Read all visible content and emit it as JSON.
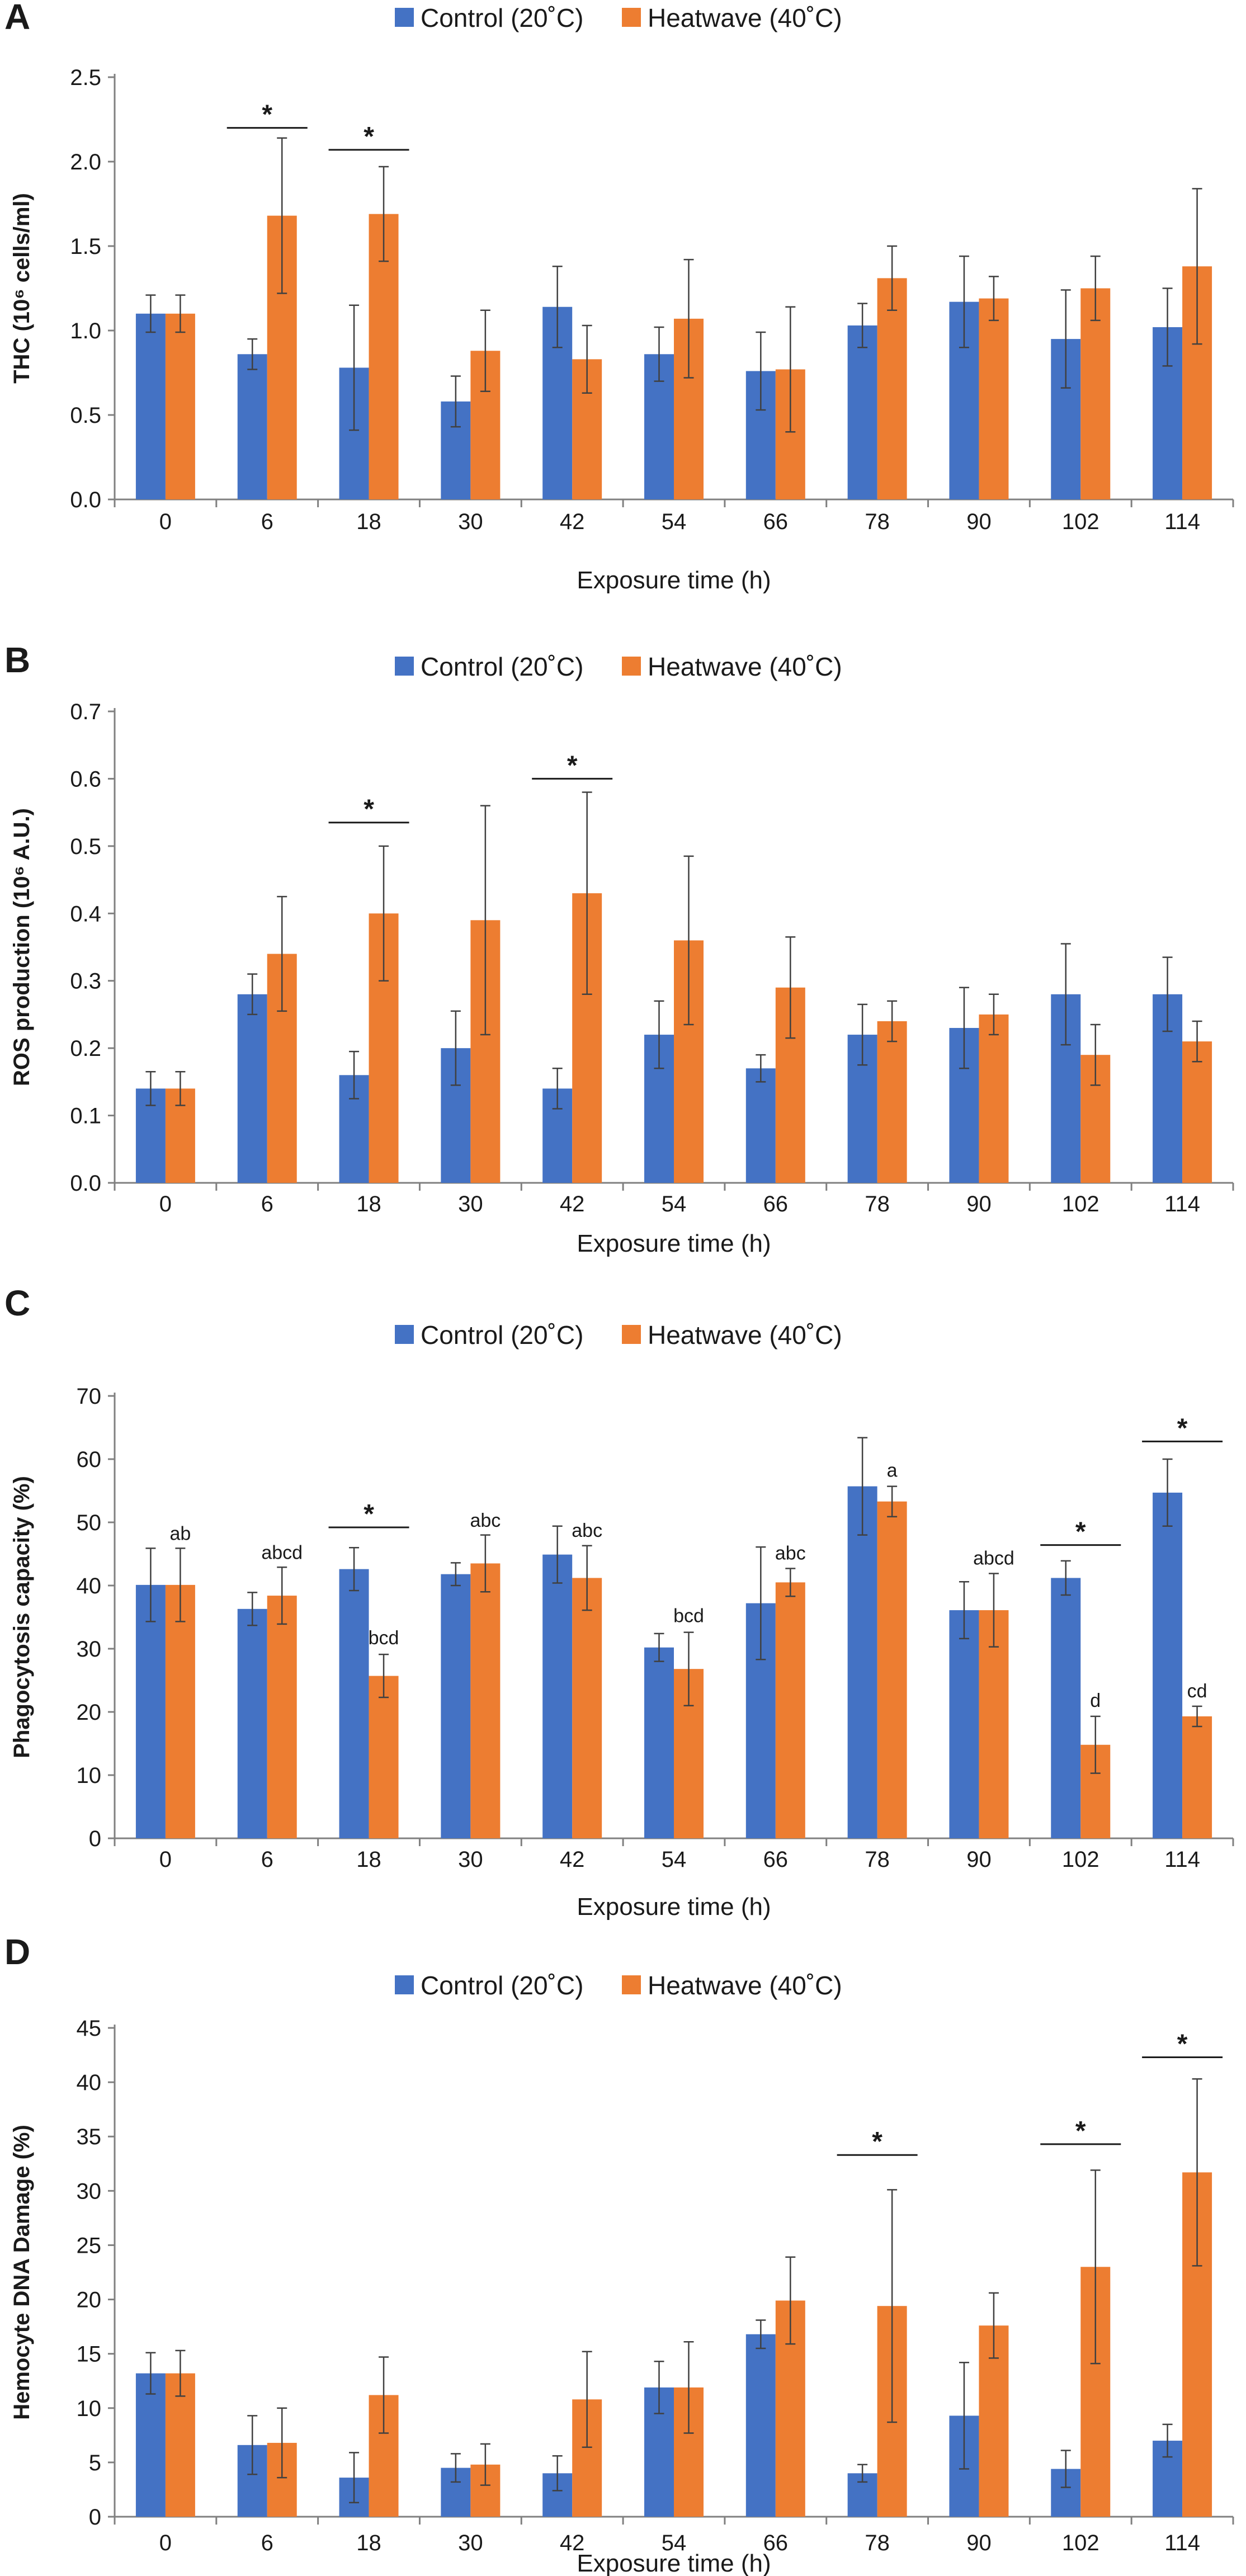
{
  "colors": {
    "control": "#4472C4",
    "heatwave": "#ED7D31",
    "axis": "#808080",
    "text": "#1a1a1a"
  },
  "chart_data": [
    {
      "panel": "A",
      "type": "bar",
      "legend": [
        "Control (20˚C)",
        "Heatwave (40˚C)"
      ],
      "xlabel": "Exposure time (h)",
      "ylabel": "THC (10⁶ cells/ml)",
      "categories": [
        "0",
        "6",
        "18",
        "30",
        "42",
        "54",
        "66",
        "78",
        "90",
        "102",
        "114"
      ],
      "ylim": [
        0,
        2.5
      ],
      "yticks": [
        0,
        0.5,
        1.0,
        1.5,
        2.0,
        2.5
      ],
      "ytick_labels": [
        "0.0",
        "0.5",
        "1.0",
        "1.5",
        "2.0",
        "2.5"
      ],
      "series": [
        {
          "name": "Control (20˚C)",
          "values": [
            1.1,
            0.86,
            0.78,
            0.58,
            1.14,
            0.86,
            0.76,
            1.03,
            1.17,
            0.95,
            1.02
          ],
          "errors": [
            0.11,
            0.09,
            0.37,
            0.15,
            0.24,
            0.16,
            0.23,
            0.13,
            0.27,
            0.29,
            0.23
          ]
        },
        {
          "name": "Heatwave (40˚C)",
          "values": [
            1.1,
            1.68,
            1.69,
            0.88,
            0.83,
            1.07,
            0.77,
            1.31,
            1.19,
            1.25,
            1.38
          ],
          "errors": [
            0.11,
            0.46,
            0.28,
            0.24,
            0.2,
            0.35,
            0.37,
            0.19,
            0.13,
            0.19,
            0.46
          ]
        }
      ],
      "significance": [
        {
          "category_index": 1,
          "label": "*",
          "y": 2.2
        },
        {
          "category_index": 2,
          "label": "*",
          "y": 2.07
        }
      ],
      "letters": []
    },
    {
      "panel": "B",
      "type": "bar",
      "legend": [
        "Control (20˚C)",
        "Heatwave (40˚C)"
      ],
      "xlabel": "Exposure time (h)",
      "ylabel": "ROS production (10⁶ A.U.)",
      "categories": [
        "0",
        "6",
        "18",
        "30",
        "42",
        "54",
        "66",
        "78",
        "90",
        "102",
        "114"
      ],
      "ylim": [
        0,
        0.7
      ],
      "yticks": [
        0,
        0.1,
        0.2,
        0.3,
        0.4,
        0.5,
        0.6,
        0.7
      ],
      "ytick_labels": [
        "0.0",
        "0.1",
        "0.2",
        "0.3",
        "0.4",
        "0.5",
        "0.6",
        "0.7"
      ],
      "series": [
        {
          "name": "Control (20˚C)",
          "values": [
            0.14,
            0.28,
            0.16,
            0.2,
            0.14,
            0.22,
            0.17,
            0.22,
            0.23,
            0.28,
            0.28
          ],
          "errors": [
            0.025,
            0.03,
            0.035,
            0.055,
            0.03,
            0.05,
            0.02,
            0.045,
            0.06,
            0.075,
            0.055
          ]
        },
        {
          "name": "Heatwave (40˚C)",
          "values": [
            0.14,
            0.34,
            0.4,
            0.39,
            0.43,
            0.36,
            0.29,
            0.24,
            0.25,
            0.19,
            0.21
          ],
          "errors": [
            0.025,
            0.085,
            0.1,
            0.17,
            0.15,
            0.125,
            0.075,
            0.03,
            0.03,
            0.045,
            0.03
          ]
        }
      ],
      "significance": [
        {
          "category_index": 2,
          "label": "*",
          "y": 0.535
        },
        {
          "category_index": 4,
          "label": "*",
          "y": 0.6
        }
      ],
      "letters": []
    },
    {
      "panel": "C",
      "type": "bar",
      "legend": [
        "Control (20˚C)",
        "Heatwave (40˚C)"
      ],
      "xlabel": "Exposure time (h)",
      "ylabel": "Phagocytosis capacity (%)",
      "categories": [
        "0",
        "6",
        "18",
        "30",
        "42",
        "54",
        "66",
        "78",
        "90",
        "102",
        "114"
      ],
      "ylim": [
        0,
        70
      ],
      "yticks": [
        0,
        10,
        20,
        30,
        40,
        50,
        60,
        70
      ],
      "ytick_labels": [
        "0",
        "10",
        "20",
        "30",
        "40",
        "50",
        "60",
        "70"
      ],
      "series": [
        {
          "name": "Control (20˚C)",
          "values": [
            40.1,
            36.3,
            42.6,
            41.8,
            44.9,
            30.2,
            37.2,
            55.7,
            36.1,
            41.2,
            54.7
          ],
          "errors": [
            5.8,
            2.6,
            3.4,
            1.8,
            4.5,
            2.2,
            8.9,
            7.7,
            4.5,
            2.7,
            5.3
          ]
        },
        {
          "name": "Heatwave (40˚C)",
          "values": [
            40.1,
            38.4,
            25.7,
            43.5,
            41.2,
            26.8,
            40.5,
            53.3,
            36.1,
            14.8,
            19.3
          ],
          "errors": [
            5.8,
            4.5,
            3.4,
            4.5,
            5.1,
            5.8,
            2.2,
            2.4,
            5.8,
            4.5,
            1.6
          ]
        }
      ],
      "significance": [
        {
          "category_index": 2,
          "label": "*",
          "y": 49.2
        },
        {
          "category_index": 9,
          "label": "*",
          "y": 46.4
        },
        {
          "category_index": 10,
          "label": "*",
          "y": 62.8
        }
      ],
      "letters": [
        {
          "category_index": 0,
          "label": "ab",
          "y": 47.2
        },
        {
          "category_index": 1,
          "label": "abcd",
          "y": 44.2
        },
        {
          "category_index": 2,
          "label": "bcd",
          "y": 30.7
        },
        {
          "category_index": 3,
          "label": "abc",
          "y": 49.3
        },
        {
          "category_index": 4,
          "label": "abc",
          "y": 47.7
        },
        {
          "category_index": 5,
          "label": "bcd",
          "y": 34.2
        },
        {
          "category_index": 6,
          "label": "abc",
          "y": 44.1
        },
        {
          "category_index": 7,
          "label": "a",
          "y": 57.2
        },
        {
          "category_index": 8,
          "label": "abcd",
          "y": 43.3
        },
        {
          "category_index": 9,
          "label": "d",
          "y": 20.8
        },
        {
          "category_index": 10,
          "label": "cd",
          "y": 22.3
        }
      ]
    },
    {
      "panel": "D",
      "type": "bar",
      "legend": [
        "Control (20˚C)",
        "Heatwave (40˚C)"
      ],
      "xlabel": "Exposure time (h)",
      "ylabel": "Hemocyte DNA Damage (%)",
      "categories": [
        "0",
        "6",
        "18",
        "30",
        "42",
        "54",
        "66",
        "78",
        "90",
        "102",
        "114"
      ],
      "ylim": [
        0,
        45
      ],
      "yticks": [
        0,
        5,
        10,
        15,
        20,
        25,
        30,
        35,
        40,
        45
      ],
      "ytick_labels": [
        "0",
        "5",
        "10",
        "15",
        "20",
        "25",
        "30",
        "35",
        "40",
        "45"
      ],
      "series": [
        {
          "name": "Control (20˚C)",
          "values": [
            13.2,
            6.6,
            3.6,
            4.5,
            4.0,
            11.9,
            16.8,
            4.0,
            9.3,
            4.4,
            7.0
          ],
          "errors": [
            1.9,
            2.7,
            2.3,
            1.3,
            1.6,
            2.4,
            1.3,
            0.8,
            4.9,
            1.7,
            1.5
          ]
        },
        {
          "name": "Heatwave (40˚C)",
          "values": [
            13.2,
            6.8,
            11.2,
            4.8,
            10.8,
            11.9,
            19.9,
            19.4,
            17.6,
            23.0,
            31.7
          ],
          "errors": [
            2.1,
            3.2,
            3.5,
            1.9,
            4.4,
            4.2,
            4.0,
            10.7,
            3.0,
            8.9,
            8.6
          ]
        }
      ],
      "significance": [
        {
          "category_index": 7,
          "label": "*",
          "y": 33.3
        },
        {
          "category_index": 9,
          "label": "*",
          "y": 34.3
        },
        {
          "category_index": 10,
          "label": "*",
          "y": 42.3
        }
      ],
      "letters": []
    }
  ]
}
